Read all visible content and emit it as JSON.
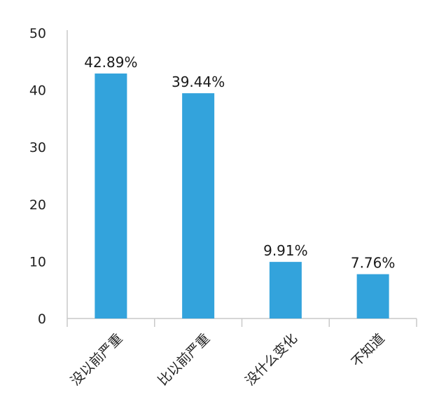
{
  "chart_data": {
    "type": "bar",
    "categories": [
      "没以前严重",
      "比以前严重",
      "没什么变化",
      "不知道"
    ],
    "values": [
      42.89,
      39.44,
      9.91,
      7.76
    ],
    "data_labels": [
      "42.89%",
      "39.44%",
      "9.91%",
      "7.76%"
    ],
    "title": "",
    "xlabel": "",
    "ylabel": "",
    "ylim": [
      0,
      50
    ],
    "yticks": [
      0,
      10,
      20,
      30,
      40,
      50
    ],
    "ytick_labels": [
      "0",
      "10",
      "20",
      "30",
      "40",
      "50"
    ],
    "grid": false,
    "legend": "none",
    "bar_color": "#33a3dc",
    "axis_color": "#c9c9c9"
  }
}
